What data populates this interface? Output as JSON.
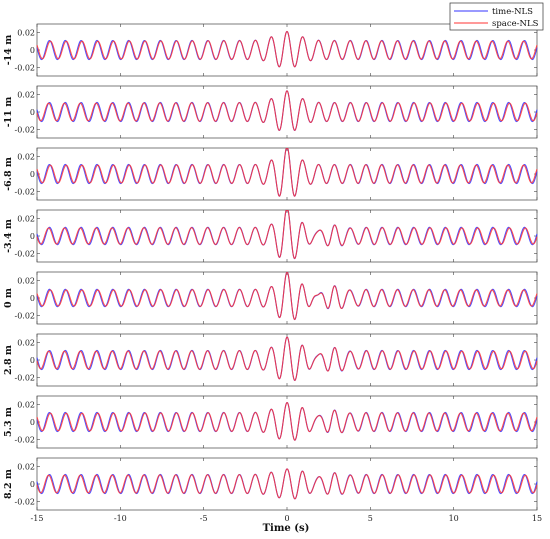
{
  "chart_data": {
    "type": "line",
    "xlabel": "Time (s)",
    "xlim": [
      -15,
      15
    ],
    "x_ticks": [
      -15,
      -10,
      -5,
      0,
      5,
      10,
      15
    ],
    "x_tick_labels": [
      "-15",
      "-10",
      "-5",
      "0",
      "5",
      "10",
      "15"
    ],
    "ylim": [
      -0.03,
      0.03
    ],
    "y_ticks": [
      0.02,
      0,
      -0.02
    ],
    "y_tick_labels": [
      "0.02",
      "0",
      "-0.02"
    ],
    "grid": false,
    "legend_position": "top-right",
    "series": [
      {
        "name": "time-NLS",
        "color": "#3333ff"
      },
      {
        "name": "space-NLS",
        "color": "#ff3333"
      }
    ],
    "wave_period_s": 0.95,
    "panels": [
      {
        "label": "-14 m",
        "background_amplitude": 0.011,
        "burst_amplitude": 0.017,
        "burst_center": 0.0,
        "burst_width": 1.0,
        "tail_amplitude": 0.0
      },
      {
        "label": "-11 m",
        "background_amplitude": 0.011,
        "burst_amplitude": 0.02,
        "burst_center": 0.0,
        "burst_width": 0.9,
        "tail_amplitude": 0.0
      },
      {
        "label": "-6.8 m",
        "background_amplitude": 0.011,
        "burst_amplitude": 0.027,
        "burst_center": 0.0,
        "burst_width": 0.8,
        "tail_amplitude": 0.0
      },
      {
        "label": "-3.4 m",
        "background_amplitude": 0.01,
        "burst_amplitude": 0.029,
        "burst_center": 0.0,
        "burst_width": 0.7,
        "tail_amplitude": 0.004
      },
      {
        "label": "0 m",
        "background_amplitude": 0.01,
        "burst_amplitude": 0.026,
        "burst_center": 0.0,
        "burst_width": 0.7,
        "tail_amplitude": 0.006
      },
      {
        "label": "2.8 m",
        "background_amplitude": 0.011,
        "burst_amplitude": 0.022,
        "burst_center": 0.0,
        "burst_width": 0.8,
        "tail_amplitude": 0.005
      },
      {
        "label": "5.3 m",
        "background_amplitude": 0.011,
        "burst_amplitude": 0.018,
        "burst_center": 0.0,
        "burst_width": 0.9,
        "tail_amplitude": 0.004
      },
      {
        "label": "8.2 m",
        "background_amplitude": 0.011,
        "burst_amplitude": 0.013,
        "burst_center": 0.0,
        "burst_width": 1.0,
        "tail_amplitude": 0.003
      }
    ]
  }
}
